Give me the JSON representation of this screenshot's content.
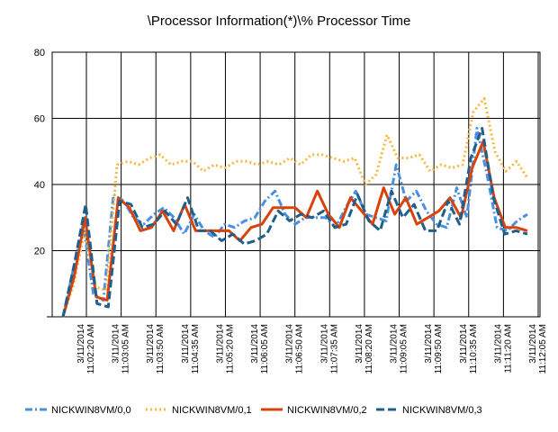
{
  "chart_data": {
    "type": "line",
    "title": "\\Processor Information(*)\\% Processor Time",
    "xlabel": "",
    "ylabel": "",
    "ylim": [
      0,
      80
    ],
    "yticks": [
      "20",
      "40",
      "60",
      "80"
    ],
    "grid": true,
    "legend_position": "bottom",
    "xtick_labels": [
      [
        "3/11/2014",
        "11:02:20 AM"
      ],
      [
        "3/11/2014",
        "11:03:05 AM"
      ],
      [
        "3/11/2014",
        "11:03:50 AM"
      ],
      [
        "3/11/2014",
        "11:04:35 AM"
      ],
      [
        "3/11/2014",
        "11:05:20 AM"
      ],
      [
        "3/11/2014",
        "11:06:05 AM"
      ],
      [
        "3/11/2014",
        "11:06:50 AM"
      ],
      [
        "3/11/2014",
        "11:07:35 AM"
      ],
      [
        "3/11/2014",
        "11:08:20 AM"
      ],
      [
        "3/11/2014",
        "11:09:05 AM"
      ],
      [
        "3/11/2014",
        "11:09:50 AM"
      ],
      [
        "3/11/2014",
        "11:10:35 AM"
      ],
      [
        "3/11/2014",
        "11:11:20 AM"
      ],
      [
        "3/11/2014",
        "11:12:05 AM"
      ]
    ],
    "series": [
      {
        "name": "NICKWIN8VM/0,0",
        "color": "#4a90e2",
        "dash": "8,3,2,3",
        "values": [
          0,
          14,
          28,
          7,
          5,
          37,
          35,
          30,
          28,
          31,
          33,
          30,
          25,
          31,
          26,
          24,
          28,
          27,
          29,
          30,
          35,
          38,
          31,
          28,
          30,
          30,
          30,
          27,
          33,
          38,
          31,
          30,
          29,
          46,
          35,
          38,
          32,
          28,
          27,
          39,
          30,
          57,
          43,
          27,
          26,
          29,
          31
        ]
      },
      {
        "name": "NICKWIN8VM/0,1",
        "color": "#f5b942",
        "dash": "2,3",
        "values": [
          0,
          10,
          26,
          9,
          8,
          46,
          47,
          46,
          48,
          49,
          46,
          47,
          47,
          44,
          46,
          45,
          47,
          47,
          46,
          47,
          46,
          48,
          46,
          49,
          49,
          48,
          47,
          48,
          40,
          43,
          55,
          48,
          48,
          49,
          44,
          46,
          45,
          46,
          62,
          66,
          50,
          44,
          47,
          42
        ]
      },
      {
        "name": "NICKWIN8VM/0,2",
        "color": "#d9420b",
        "dash": "",
        "values": [
          0,
          12,
          30,
          6,
          5,
          36,
          33,
          26,
          27,
          32,
          26,
          34,
          26,
          26,
          26,
          26,
          23,
          27,
          28,
          33,
          33,
          33,
          30,
          38,
          31,
          27,
          36,
          32,
          28,
          39,
          31,
          36,
          28,
          30,
          32,
          36,
          30,
          45,
          53,
          36,
          27,
          27,
          26
        ]
      },
      {
        "name": "NICKWIN8VM/0,3",
        "color": "#1f5f8b",
        "dash": "9,4",
        "values": [
          0,
          16,
          34,
          4,
          3,
          35,
          34,
          27,
          28,
          32,
          28,
          36,
          26,
          26,
          23,
          25,
          22,
          23,
          25,
          32,
          29,
          31,
          30,
          32,
          27,
          28,
          37,
          29,
          26,
          38,
          30,
          34,
          26,
          26,
          35,
          28,
          48,
          57,
          36,
          25,
          26,
          25
        ]
      }
    ]
  }
}
